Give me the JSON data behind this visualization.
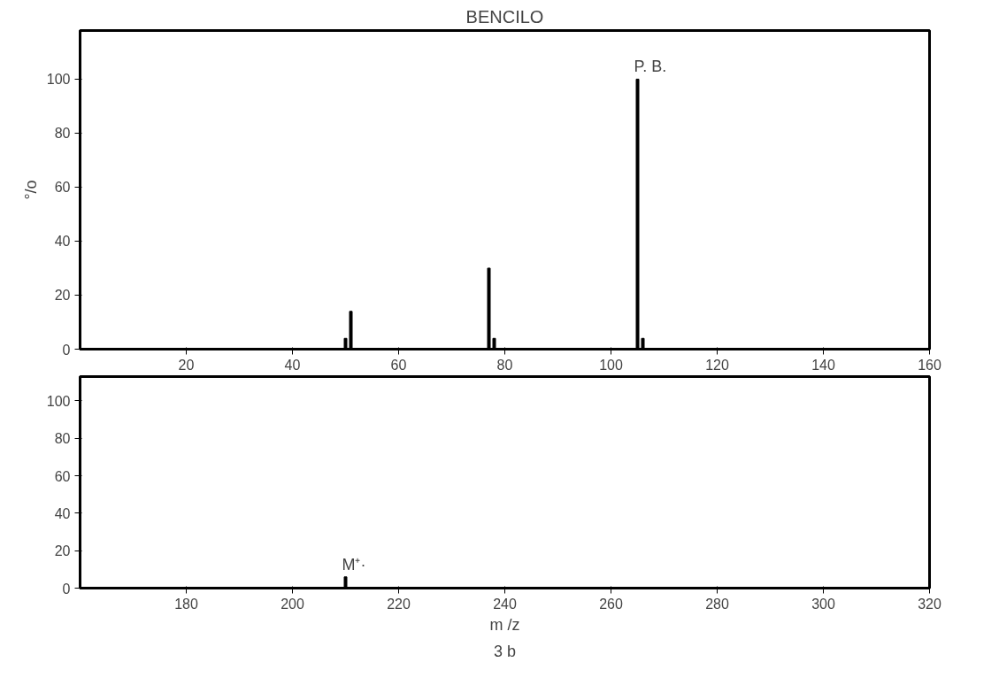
{
  "chart_data": [
    {
      "type": "bar",
      "title": "BENCILO",
      "ylabel": "°/o",
      "x": [
        50,
        51,
        77,
        78,
        105,
        106
      ],
      "values": [
        4,
        14,
        30,
        4,
        100,
        4
      ],
      "color": "#000000",
      "xlim": [
        0,
        160
      ],
      "xticks": [
        20,
        40,
        60,
        80,
        100,
        120,
        140,
        160
      ],
      "ylim": [
        0,
        118
      ],
      "yticks": [
        0,
        20,
        40,
        60,
        80,
        100
      ],
      "grid": false,
      "annotations": [
        {
          "text": "P. B.",
          "x": 105,
          "y": 100
        }
      ]
    },
    {
      "type": "bar",
      "xlabel": "m /z",
      "x": [
        210
      ],
      "values": [
        6
      ],
      "color": "#000000",
      "xlim": [
        160,
        320
      ],
      "xticks": [
        180,
        200,
        220,
        240,
        260,
        280,
        300,
        320
      ],
      "ylim": [
        0,
        113
      ],
      "yticks": [
        0,
        20,
        40,
        60,
        80,
        100
      ],
      "grid": false,
      "annotations": [
        {
          "text": "M⁺·",
          "x": 210,
          "y": 6
        },
        "3 b"
      ]
    }
  ]
}
